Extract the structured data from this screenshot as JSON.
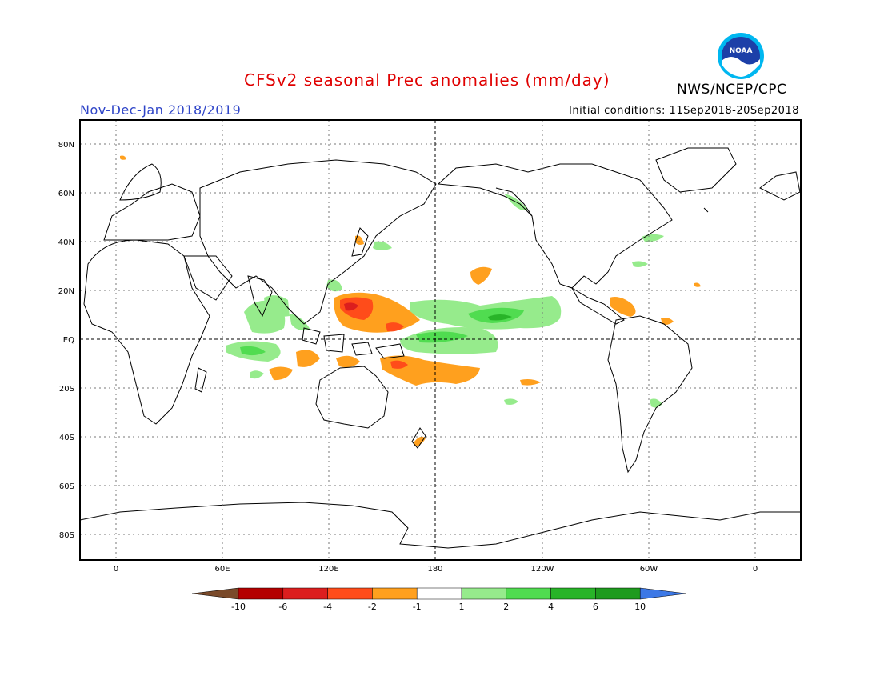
{
  "header": {
    "title": "CFSv2 seasonal Prec anomalies (mm/day)",
    "period": "Nov-Dec-Jan 2018/2019",
    "initial_conditions": "Initial conditions: 11Sep2018-20Sep2018",
    "agency": "NWS/NCEP/CPC",
    "logo_text": "NOAA"
  },
  "map": {
    "lat_labels": [
      "80N",
      "60N",
      "40N",
      "20N",
      "EQ",
      "20S",
      "40S",
      "60S",
      "80S"
    ],
    "lon_labels": [
      "0",
      "60E",
      "120E",
      "180",
      "120W",
      "60W",
      "0"
    ],
    "colors": {
      "frame": "#000000",
      "grid": "#555555",
      "coast": "#000000"
    }
  },
  "legend": {
    "labels": [
      "-10",
      "-6",
      "-4",
      "-2",
      "-1",
      "1",
      "2",
      "4",
      "6",
      "10"
    ],
    "colors": [
      "#7a4a2a",
      "#b40000",
      "#dc1e1e",
      "#ff4c1a",
      "#ffa01e",
      "#ffffff",
      "#96eb8c",
      "#50dc50",
      "#28b428",
      "#1e9b1e",
      "#3c78e6"
    ]
  }
}
